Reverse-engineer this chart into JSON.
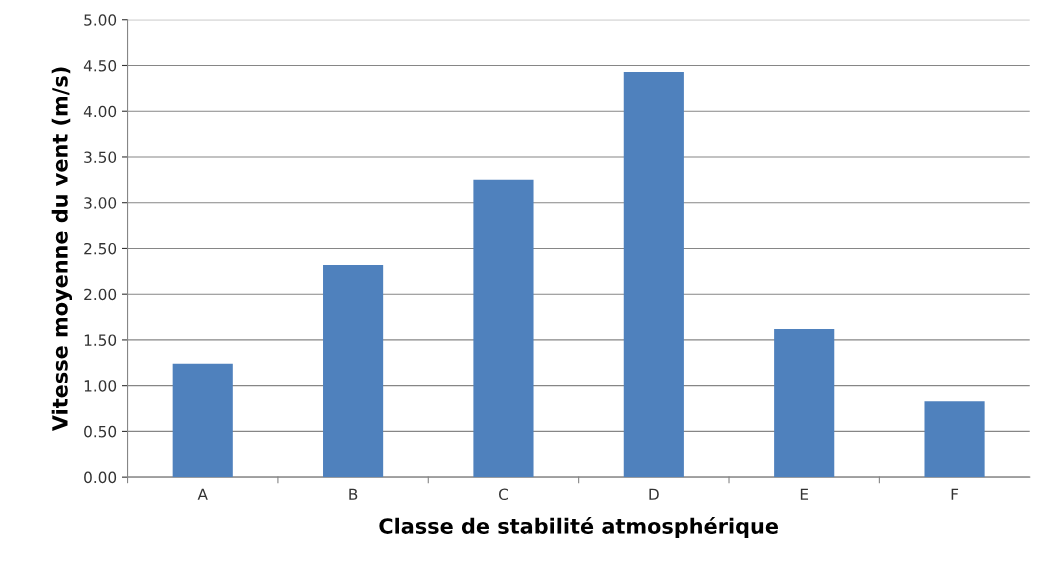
{
  "chart_data": {
    "type": "bar",
    "xlabel": "Classe de stabilité atmosphérique",
    "ylabel": "Vitesse moyenne du vent (m/s)",
    "categories": [
      "A",
      "B",
      "C",
      "D",
      "E",
      "F"
    ],
    "values": [
      1.24,
      2.32,
      3.25,
      4.43,
      1.62,
      0.83
    ],
    "color": "#4f81bd",
    "ylim": [
      0,
      5
    ],
    "yticks": [
      {
        "value": 0,
        "label": "0.00"
      },
      {
        "value": 0.5,
        "label": "0.50"
      },
      {
        "value": 1,
        "label": "1.00"
      },
      {
        "value": 1.5,
        "label": "1.50"
      },
      {
        "value": 2,
        "label": "2.00"
      },
      {
        "value": 2.5,
        "label": "2.50"
      },
      {
        "value": 3,
        "label": "3.00"
      },
      {
        "value": 3.5,
        "label": "3.50"
      },
      {
        "value": 4,
        "label": "4.00"
      },
      {
        "value": 4.5,
        "label": "4.50"
      },
      {
        "value": 5,
        "label": "5.00"
      }
    ],
    "grid": "y",
    "legend": false
  }
}
